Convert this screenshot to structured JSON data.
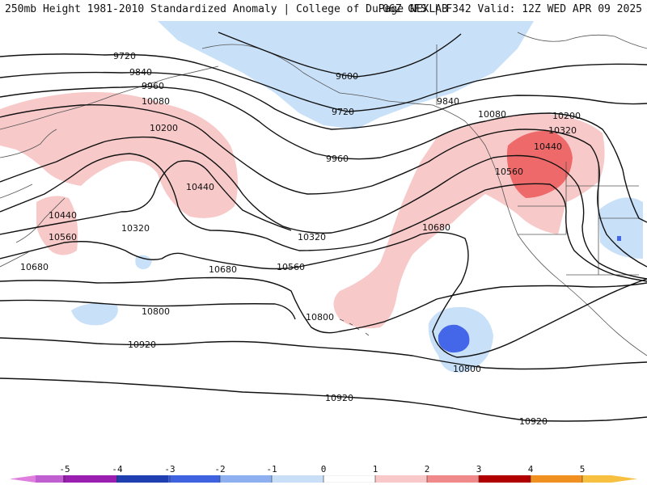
{
  "header": {
    "title_left": "250mb Height 1981-2010 Standardized Anomaly | College of DuPage NEXLAB",
    "title_right": "06Z GFS | F342 Valid: 12Z WED APR 09 2025"
  },
  "contour_labels": [
    "9600",
    "9720",
    "9720",
    "9840",
    "9840",
    "9960",
    "9960",
    "10080",
    "10080",
    "10200",
    "10200",
    "10320",
    "10320",
    "10320",
    "10440",
    "10440",
    "10440",
    "10560",
    "10560",
    "10560",
    "10680",
    "10680",
    "10680",
    "10800",
    "10800",
    "10800",
    "10920",
    "10920",
    "10920"
  ],
  "colorbar": {
    "ticks": [
      "-5",
      "-4",
      "-3",
      "-2",
      "-1",
      "0",
      "1",
      "2",
      "3",
      "4",
      "5"
    ],
    "colors": [
      "#e07ee0",
      "#9a1fb0",
      "#1f3fb0",
      "#3f63e0",
      "#8fb0f0",
      "#c8dff7",
      "#ffffff",
      "#f9c8c8",
      "#f08a8a",
      "#d83a3a",
      "#b00000",
      "#f09020",
      "#f7c040"
    ]
  },
  "anomaly_colors": {
    "neg_light": "#c8e0f8",
    "neg_strong": "#4466e8",
    "pos_light": "#f8c9c9",
    "pos_strong": "#ee6a6a"
  }
}
